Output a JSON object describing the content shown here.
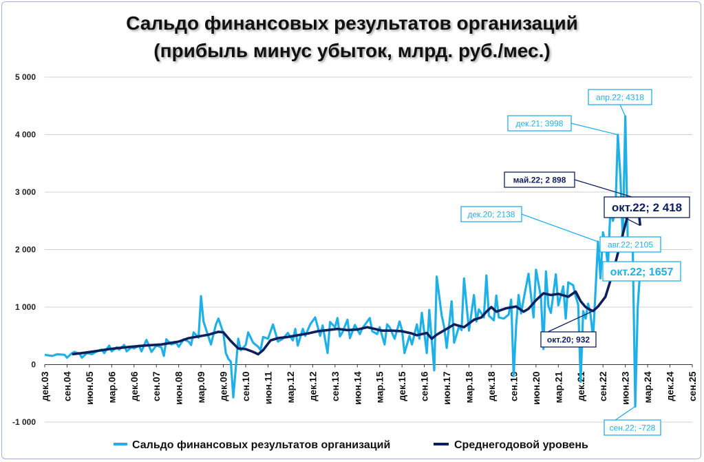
{
  "title_line1": "Сальдо финансовых результатов организаций",
  "title_line2": "(прибыль минус убыток, млрд. руб./мес.)",
  "colors": {
    "series": "#1fb0e8",
    "average": "#0d1f5c",
    "grid": "#d0d0d0"
  },
  "chart_data": {
    "type": "line",
    "ylim": [
      -1000,
      5000
    ],
    "yticks": [
      {
        "v": 5000,
        "label": "5 000"
      },
      {
        "v": 4000,
        "label": "4 000"
      },
      {
        "v": 3000,
        "label": "3 000"
      },
      {
        "v": 2000,
        "label": "2 000"
      },
      {
        "v": 1000,
        "label": "1 000"
      },
      {
        "v": 0,
        "label": "0"
      },
      {
        "v": -1000,
        "label": "-1 000"
      }
    ],
    "x_labels": [
      "дек.03",
      "сен.04",
      "июн.05",
      "мар.06",
      "дек.06",
      "сен.07",
      "июн.08",
      "мар.09",
      "дек.09",
      "сен.10",
      "июн.11",
      "мар.12",
      "дек.12",
      "сен.13",
      "июн.14",
      "мар.15",
      "дек.15",
      "сен.16",
      "июн.17",
      "мар.18",
      "дек.18",
      "сен.19",
      "июн.20",
      "мар.21",
      "дек.21",
      "сен.22",
      "июн.23",
      "мар.24",
      "дек.24",
      "сен.25"
    ],
    "x_start": "дек.03",
    "x_max_index": 261,
    "series": [
      {
        "name": "Сальдо финансовых результатов организаций",
        "anchors": [
          [
            0,
            170
          ],
          [
            3,
            150
          ],
          [
            5,
            180
          ],
          [
            8,
            170
          ],
          [
            9,
            120
          ],
          [
            11,
            200
          ],
          [
            12,
            220
          ],
          [
            14,
            190
          ],
          [
            15,
            120
          ],
          [
            17,
            200
          ],
          [
            19,
            180
          ],
          [
            21,
            230
          ],
          [
            23,
            260
          ],
          [
            24,
            200
          ],
          [
            26,
            330
          ],
          [
            27,
            230
          ],
          [
            29,
            300
          ],
          [
            30,
            260
          ],
          [
            32,
            340
          ],
          [
            33,
            230
          ],
          [
            35,
            300
          ],
          [
            36,
            280
          ],
          [
            38,
            330
          ],
          [
            39,
            230
          ],
          [
            41,
            430
          ],
          [
            42,
            330
          ],
          [
            43,
            220
          ],
          [
            45,
            330
          ],
          [
            47,
            300
          ],
          [
            48,
            150
          ],
          [
            49,
            440
          ],
          [
            51,
            350
          ],
          [
            53,
            380
          ],
          [
            54,
            310
          ],
          [
            56,
            440
          ],
          [
            58,
            400
          ],
          [
            59,
            340
          ],
          [
            60,
            560
          ],
          [
            62,
            470
          ],
          [
            63,
            1190
          ],
          [
            64,
            750
          ],
          [
            66,
            480
          ],
          [
            67,
            350
          ],
          [
            69,
            700
          ],
          [
            70,
            800
          ],
          [
            72,
            550
          ],
          [
            73,
            200
          ],
          [
            74,
            100
          ],
          [
            75,
            50
          ],
          [
            76,
            -570
          ],
          [
            78,
            450
          ],
          [
            79,
            250
          ],
          [
            81,
            340
          ],
          [
            82,
            560
          ],
          [
            84,
            380
          ],
          [
            86,
            310
          ],
          [
            87,
            250
          ],
          [
            88,
            480
          ],
          [
            90,
            450
          ],
          [
            92,
            700
          ],
          [
            94,
            400
          ],
          [
            96,
            450
          ],
          [
            98,
            550
          ],
          [
            100,
            420
          ],
          [
            101,
            620
          ],
          [
            102,
            330
          ],
          [
            104,
            620
          ],
          [
            105,
            500
          ],
          [
            107,
            700
          ],
          [
            109,
            820
          ],
          [
            111,
            500
          ],
          [
            112,
            680
          ],
          [
            114,
            200
          ],
          [
            115,
            740
          ],
          [
            117,
            650
          ],
          [
            118,
            810
          ],
          [
            119,
            490
          ],
          [
            120,
            560
          ],
          [
            122,
            780
          ],
          [
            123,
            460
          ],
          [
            125,
            690
          ],
          [
            127,
            530
          ],
          [
            128,
            630
          ],
          [
            130,
            750
          ],
          [
            131,
            810
          ],
          [
            132,
            580
          ],
          [
            134,
            530
          ],
          [
            135,
            650
          ],
          [
            137,
            350
          ],
          [
            138,
            700
          ],
          [
            139,
            650
          ],
          [
            141,
            450
          ],
          [
            143,
            750
          ],
          [
            144,
            600
          ],
          [
            145,
            200
          ],
          [
            147,
            500
          ],
          [
            148,
            350
          ],
          [
            150,
            700
          ],
          [
            151,
            450
          ],
          [
            152,
            900
          ],
          [
            154,
            200
          ],
          [
            155,
            950
          ],
          [
            157,
            -100
          ],
          [
            158,
            1530
          ],
          [
            160,
            850
          ],
          [
            161,
            650
          ],
          [
            162,
            290
          ],
          [
            164,
            1100
          ],
          [
            165,
            380
          ],
          [
            167,
            670
          ],
          [
            168,
            600
          ],
          [
            169,
            1500
          ],
          [
            171,
            590
          ],
          [
            173,
            1210
          ],
          [
            174,
            750
          ],
          [
            175,
            960
          ],
          [
            177,
            820
          ],
          [
            178,
            1550
          ],
          [
            179,
            850
          ],
          [
            181,
            770
          ],
          [
            182,
            1200
          ],
          [
            183,
            820
          ],
          [
            185,
            800
          ],
          [
            187,
            870
          ],
          [
            188,
            1130
          ],
          [
            189,
            -200
          ],
          [
            190,
            680
          ],
          [
            191,
            1210
          ],
          [
            192,
            890
          ],
          [
            193,
            1130
          ],
          [
            195,
            1580
          ],
          [
            197,
            820
          ],
          [
            198,
            1650
          ],
          [
            200,
            1170
          ],
          [
            201,
            270
          ],
          [
            202,
            1620
          ],
          [
            203,
            1020
          ],
          [
            204,
            900
          ],
          [
            206,
            1570
          ],
          [
            207,
            1030
          ],
          [
            209,
            1360
          ],
          [
            210,
            800
          ],
          [
            211,
            1430
          ],
          [
            213,
            1380
          ],
          [
            214,
            1190
          ],
          [
            215,
            1040
          ],
          [
            216,
            -300
          ],
          [
            217,
            930
          ],
          [
            218,
            800
          ],
          [
            219,
            1060
          ],
          [
            220,
            870
          ],
          [
            221,
            450
          ],
          [
            223,
            2138
          ],
          [
            224,
            1500
          ],
          [
            225,
            2300
          ],
          [
            226,
            2100
          ],
          [
            227,
            1700
          ],
          [
            228,
            2700
          ],
          [
            229,
            2500
          ],
          [
            230,
            2650
          ],
          [
            231,
            3998
          ],
          [
            232,
            3300
          ],
          [
            233,
            2200
          ],
          [
            234,
            4318
          ],
          [
            235,
            2100
          ],
          [
            236,
            2105
          ],
          [
            237,
            2000
          ],
          [
            238,
            -728
          ],
          [
            239,
            1000
          ],
          [
            240,
            1657
          ]
        ]
      },
      {
        "name": "Среднегодовой уровень",
        "anchors": [
          [
            11,
            180
          ],
          [
            15,
            200
          ],
          [
            20,
            230
          ],
          [
            26,
            270
          ],
          [
            30,
            290
          ],
          [
            35,
            310
          ],
          [
            40,
            330
          ],
          [
            47,
            350
          ],
          [
            54,
            400
          ],
          [
            58,
            460
          ],
          [
            62,
            490
          ],
          [
            66,
            520
          ],
          [
            70,
            570
          ],
          [
            72,
            560
          ],
          [
            75,
            410
          ],
          [
            78,
            280
          ],
          [
            81,
            270
          ],
          [
            84,
            220
          ],
          [
            86,
            180
          ],
          [
            88,
            250
          ],
          [
            91,
            420
          ],
          [
            94,
            460
          ],
          [
            98,
            480
          ],
          [
            102,
            510
          ],
          [
            106,
            540
          ],
          [
            110,
            580
          ],
          [
            114,
            600
          ],
          [
            118,
            620
          ],
          [
            122,
            600
          ],
          [
            126,
            610
          ],
          [
            130,
            650
          ],
          [
            133,
            620
          ],
          [
            136,
            590
          ],
          [
            140,
            590
          ],
          [
            144,
            580
          ],
          [
            148,
            540
          ],
          [
            150,
            510
          ],
          [
            154,
            550
          ],
          [
            156,
            450
          ],
          [
            158,
            520
          ],
          [
            162,
            620
          ],
          [
            165,
            700
          ],
          [
            169,
            650
          ],
          [
            173,
            780
          ],
          [
            176,
            820
          ],
          [
            178,
            920
          ],
          [
            180,
            1000
          ],
          [
            182,
            920
          ],
          [
            186,
            980
          ],
          [
            190,
            1010
          ],
          [
            193,
            920
          ],
          [
            195,
            970
          ],
          [
            198,
            1120
          ],
          [
            201,
            1240
          ],
          [
            204,
            1210
          ],
          [
            207,
            1230
          ],
          [
            211,
            1180
          ],
          [
            214,
            1270
          ],
          [
            216,
            1100
          ],
          [
            218,
            1000
          ],
          [
            220,
            950
          ],
          [
            221,
            932
          ],
          [
            223,
            1010
          ],
          [
            226,
            1180
          ],
          [
            229,
            1600
          ],
          [
            232,
            2100
          ],
          [
            235,
            2600
          ],
          [
            237,
            2750
          ],
          [
            238,
            2898
          ],
          [
            239,
            2820
          ],
          [
            240,
            2418
          ]
        ]
      }
    ],
    "annotations": [
      {
        "text": "апр.22; 4318",
        "series": 0,
        "idx": 234,
        "value": 4318
      },
      {
        "text": "дек.21; 3998",
        "series": 0,
        "idx": 231,
        "value": 3998
      },
      {
        "text": "май.22; 2 898",
        "series": 1,
        "idx": 238,
        "value": 2898
      },
      {
        "text": "окт.22; 2 418",
        "series": 1,
        "idx": 240,
        "value": 2418
      },
      {
        "text": "дек.20; 2138",
        "series": 0,
        "idx": 223,
        "value": 2138
      },
      {
        "text": "авг.22; 2105",
        "series": 0,
        "idx": 236,
        "value": 2105
      },
      {
        "text": "окт.22; 1657",
        "series": 0,
        "idx": 240,
        "value": 1657
      },
      {
        "text": "окт.20; 932",
        "series": 1,
        "idx": 221,
        "value": 932
      },
      {
        "text": "сен.22; -728",
        "series": 0,
        "idx": 238,
        "value": -728
      }
    ],
    "legend": [
      "Сальдо финансовых результатов организаций",
      "Среднегодовой уровень"
    ],
    "legend_position": "bottom"
  }
}
